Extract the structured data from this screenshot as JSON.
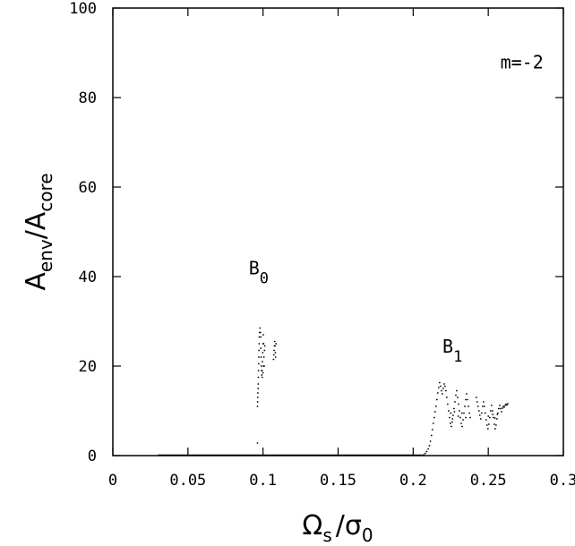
{
  "chart_data": {
    "type": "scatter",
    "xlabel": {
      "main1": "Ω",
      "sub1": "s",
      "sep": "/",
      "main2": "σ",
      "sub2": "0"
    },
    "ylabel": {
      "main1": "A",
      "sub1": "env",
      "sep": "/",
      "main2": "A",
      "sub2": "core"
    },
    "xlim": [
      0,
      0.3
    ],
    "ylim": [
      0,
      100
    ],
    "x_ticks": [
      0,
      0.05,
      0.1,
      0.15,
      0.2,
      0.25,
      0.3
    ],
    "x_tick_labels": [
      "0",
      "0.05",
      "0.1",
      "0.15",
      "0.2",
      "0.25",
      "0.3"
    ],
    "y_ticks": [
      0,
      20,
      40,
      60,
      80,
      100
    ],
    "y_tick_labels": [
      "0",
      "20",
      "40",
      "60",
      "80",
      "100"
    ],
    "grid": false,
    "annotations": [
      {
        "id": "m-label",
        "text": "m=-2",
        "x": 0.258,
        "y": 86.5
      },
      {
        "id": "b0-label",
        "main": "B",
        "sub": "0",
        "x": 0.0905,
        "y": 40.5
      },
      {
        "id": "b1-label",
        "main": "B",
        "sub": "1",
        "x": 0.2195,
        "y": 23
      }
    ],
    "series": [
      {
        "marker": "dot",
        "baseline_x": [
          0.03,
          0.206
        ],
        "baseline_y": 0,
        "points": [
          [
            0.0963,
            2.8
          ],
          [
            0.0963,
            11
          ],
          [
            0.0964,
            12
          ],
          [
            0.0965,
            13
          ],
          [
            0.0966,
            14
          ],
          [
            0.0967,
            15
          ],
          [
            0.0968,
            16
          ],
          [
            0.0969,
            17.5
          ],
          [
            0.097,
            19
          ],
          [
            0.0971,
            20.5
          ],
          [
            0.0972,
            22
          ],
          [
            0.0973,
            23.5
          ],
          [
            0.0974,
            25
          ],
          [
            0.0975,
            26.5
          ],
          [
            0.0977,
            27.5
          ],
          [
            0.098,
            28.5
          ],
          [
            0.0983,
            27.5
          ],
          [
            0.0986,
            26.5
          ],
          [
            0.0985,
            24
          ],
          [
            0.0987,
            22
          ],
          [
            0.0989,
            20
          ],
          [
            0.099,
            19
          ],
          [
            0.0992,
            18
          ],
          [
            0.0994,
            19
          ],
          [
            0.0996,
            21
          ],
          [
            0.0998,
            23
          ],
          [
            0.1,
            25
          ],
          [
            0.1002,
            27
          ],
          [
            0.1004,
            25
          ],
          [
            0.1006,
            22
          ],
          [
            0.1008,
            20
          ],
          [
            0.0995,
            17.5
          ],
          [
            0.1,
            18.5
          ],
          [
            0.1003,
            20
          ],
          [
            0.101,
            23.5
          ],
          [
            0.1012,
            24.5
          ],
          [
            0.107,
            21.5
          ],
          [
            0.1072,
            22.5
          ],
          [
            0.1074,
            23.5
          ],
          [
            0.1076,
            24.5
          ],
          [
            0.1078,
            25.5
          ],
          [
            0.108,
            24.5
          ],
          [
            0.1082,
            23
          ],
          [
            0.1084,
            22
          ],
          [
            0.1086,
            25
          ],
          [
            0.207,
            0.2
          ],
          [
            0.208,
            0.5
          ],
          [
            0.209,
            0.9
          ],
          [
            0.21,
            1.5
          ],
          [
            0.2108,
            2.2
          ],
          [
            0.2115,
            3.2
          ],
          [
            0.2122,
            4.5
          ],
          [
            0.2128,
            5.8
          ],
          [
            0.2134,
            7.2
          ],
          [
            0.214,
            8.5
          ],
          [
            0.2146,
            9.8
          ],
          [
            0.2152,
            11
          ],
          [
            0.2158,
            12.5
          ],
          [
            0.2164,
            14
          ],
          [
            0.217,
            15.2
          ],
          [
            0.2176,
            16.3
          ],
          [
            0.2182,
            15.5
          ],
          [
            0.2188,
            14.5
          ],
          [
            0.2194,
            13.8
          ],
          [
            0.22,
            15
          ],
          [
            0.2206,
            16
          ],
          [
            0.2212,
            15.5
          ],
          [
            0.2218,
            14.5
          ],
          [
            0.2224,
            13
          ],
          [
            0.223,
            11.5
          ],
          [
            0.2236,
            10
          ],
          [
            0.2242,
            8.5
          ],
          [
            0.2248,
            7.2
          ],
          [
            0.2254,
            6.5
          ],
          [
            0.226,
            7.5
          ],
          [
            0.2266,
            9
          ],
          [
            0.2272,
            10.5
          ],
          [
            0.2278,
            12
          ],
          [
            0.2284,
            13.5
          ],
          [
            0.229,
            14.5
          ],
          [
            0.2296,
            13
          ],
          [
            0.2302,
            11.5
          ],
          [
            0.2308,
            10
          ],
          [
            0.2314,
            8.5
          ],
          [
            0.232,
            7.2
          ],
          [
            0.2326,
            6.5
          ],
          [
            0.2332,
            8
          ],
          [
            0.2338,
            9.5
          ],
          [
            0.2344,
            11
          ],
          [
            0.235,
            12.5
          ],
          [
            0.2356,
            13.8
          ],
          [
            0.2362,
            12.5
          ],
          [
            0.2368,
            11
          ],
          [
            0.2374,
            9.5
          ],
          [
            0.238,
            8.5
          ],
          [
            0.225,
            9.5
          ],
          [
            0.2262,
            8.2
          ],
          [
            0.2275,
            9.8
          ],
          [
            0.23,
            8.8
          ],
          [
            0.2325,
            9.5
          ],
          [
            0.235,
            8.5
          ],
          [
            0.242,
            13
          ],
          [
            0.2426,
            12
          ],
          [
            0.2432,
            11
          ],
          [
            0.2438,
            10
          ],
          [
            0.2444,
            9
          ],
          [
            0.245,
            8.2
          ],
          [
            0.2456,
            9.5
          ],
          [
            0.2462,
            11
          ],
          [
            0.2468,
            12
          ],
          [
            0.2474,
            11
          ],
          [
            0.248,
            9.5
          ],
          [
            0.2486,
            8
          ],
          [
            0.2492,
            6.8
          ],
          [
            0.2498,
            6
          ],
          [
            0.2504,
            7
          ],
          [
            0.251,
            8.5
          ],
          [
            0.2516,
            10
          ],
          [
            0.2522,
            11.2
          ],
          [
            0.2528,
            10
          ],
          [
            0.2534,
            8.5
          ],
          [
            0.254,
            7
          ],
          [
            0.2546,
            6
          ],
          [
            0.2552,
            6.8
          ],
          [
            0.2558,
            8.2
          ],
          [
            0.2564,
            9.5
          ],
          [
            0.257,
            10.5
          ],
          [
            0.2576,
            11.2
          ],
          [
            0.2582,
            10.5
          ],
          [
            0.2588,
            9.8
          ],
          [
            0.2594,
            10.6
          ],
          [
            0.26,
            11
          ],
          [
            0.2606,
            10.8
          ],
          [
            0.2612,
            11.2
          ],
          [
            0.2618,
            11.5
          ],
          [
            0.2624,
            11.3
          ],
          [
            0.263,
            11.6
          ],
          [
            0.25,
            8.8
          ],
          [
            0.253,
            9.2
          ],
          [
            0.2545,
            8.4
          ],
          [
            0.256,
            9.2
          ]
        ]
      }
    ]
  }
}
